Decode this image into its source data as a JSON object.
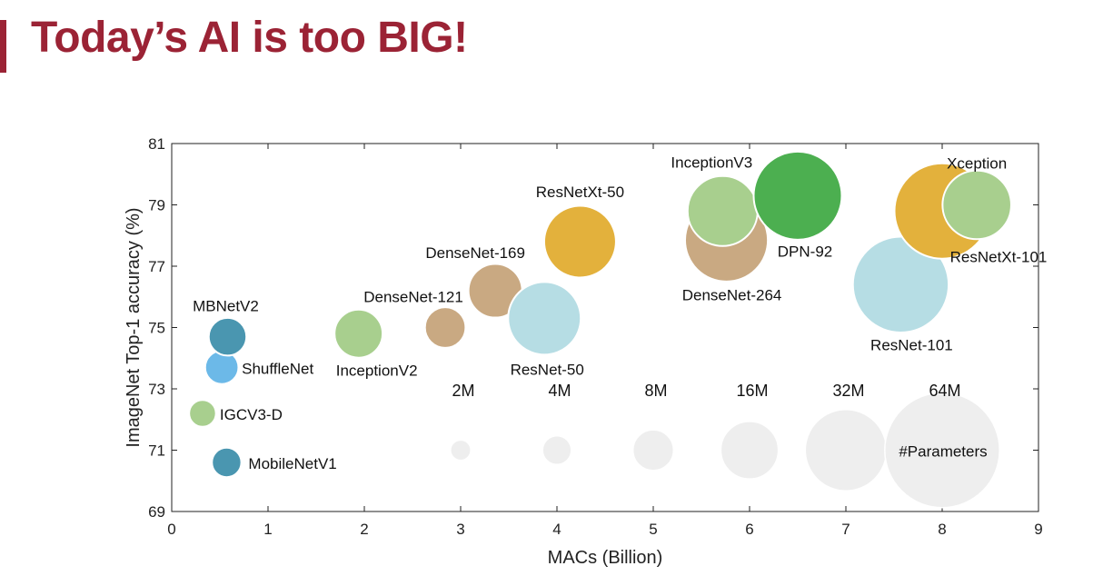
{
  "slide": {
    "title": "Today’s AI is too BIG!",
    "accent_color": "#9b2335"
  },
  "chart_data": {
    "type": "scatter",
    "subtype": "bubble",
    "title": "",
    "xlabel": "MACs (Billion)",
    "ylabel": "ImageNet Top-1 accuracy (%)",
    "xlim": [
      0,
      9
    ],
    "ylim": [
      69,
      81
    ],
    "xticks": [
      0,
      1,
      2,
      3,
      4,
      5,
      6,
      7,
      8,
      9
    ],
    "yticks": [
      69,
      71,
      73,
      75,
      77,
      79,
      81
    ],
    "grid": false,
    "points": [
      {
        "label": "MobileNetV1",
        "x": 0.57,
        "y": 70.6,
        "params_m": 4.2,
        "color": "#4a96b0"
      },
      {
        "label": "IGCV3-D",
        "x": 0.32,
        "y": 72.2,
        "params_m": 3.5,
        "color": "#a8cf8e"
      },
      {
        "label": "ShuffleNet",
        "x": 0.52,
        "y": 73.7,
        "params_m": 5.4,
        "color": "#6cb9e8"
      },
      {
        "label": "MBNetV2",
        "x": 0.58,
        "y": 74.7,
        "params_m": 6.9,
        "color": "#4a96b0"
      },
      {
        "label": "InceptionV2",
        "x": 1.94,
        "y": 74.8,
        "params_m": 11.2,
        "color": "#a8cf8e"
      },
      {
        "label": "DenseNet-121",
        "x": 2.84,
        "y": 75.0,
        "params_m": 8.0,
        "color": "#c9a982"
      },
      {
        "label": "DenseNet-169",
        "x": 3.36,
        "y": 76.2,
        "params_m": 14.0,
        "color": "#c9a982"
      },
      {
        "label": "ResNet-50",
        "x": 3.87,
        "y": 75.3,
        "params_m": 25.6,
        "color": "#b6dde4"
      },
      {
        "label": "ResNetXt-50",
        "x": 4.24,
        "y": 77.8,
        "params_m": 25.0,
        "color": "#e3b13c"
      },
      {
        "label": "DenseNet-264",
        "x": 5.76,
        "y": 77.85,
        "params_m": 33.3,
        "color": "#c9a982"
      },
      {
        "label": "InceptionV3",
        "x": 5.72,
        "y": 78.8,
        "params_m": 23.8,
        "color": "#a8cf8e"
      },
      {
        "label": "DPN-92",
        "x": 6.5,
        "y": 79.3,
        "params_m": 37.7,
        "color": "#4caf50"
      },
      {
        "label": "ResNet-101",
        "x": 7.57,
        "y": 76.4,
        "params_m": 44.5,
        "color": "#b6dde4"
      },
      {
        "label": "ResNetXt-101",
        "x": 8.0,
        "y": 78.8,
        "params_m": 44.2,
        "color": "#e3b13c"
      },
      {
        "label": "Xception",
        "x": 8.36,
        "y": 79.0,
        "params_m": 22.9,
        "color": "#a8cf8e"
      }
    ],
    "size_legend": {
      "title": "#Parameters",
      "color": "#eeeeee",
      "y": 71,
      "items": [
        {
          "label": "2M",
          "x": 3,
          "params_m": 2
        },
        {
          "label": "4M",
          "x": 4,
          "params_m": 4
        },
        {
          "label": "8M",
          "x": 5,
          "params_m": 8
        },
        {
          "label": "16M",
          "x": 6,
          "params_m": 16
        },
        {
          "label": "32M",
          "x": 7,
          "params_m": 32
        },
        {
          "label": "64M",
          "x": 8,
          "params_m": 64
        }
      ]
    }
  }
}
